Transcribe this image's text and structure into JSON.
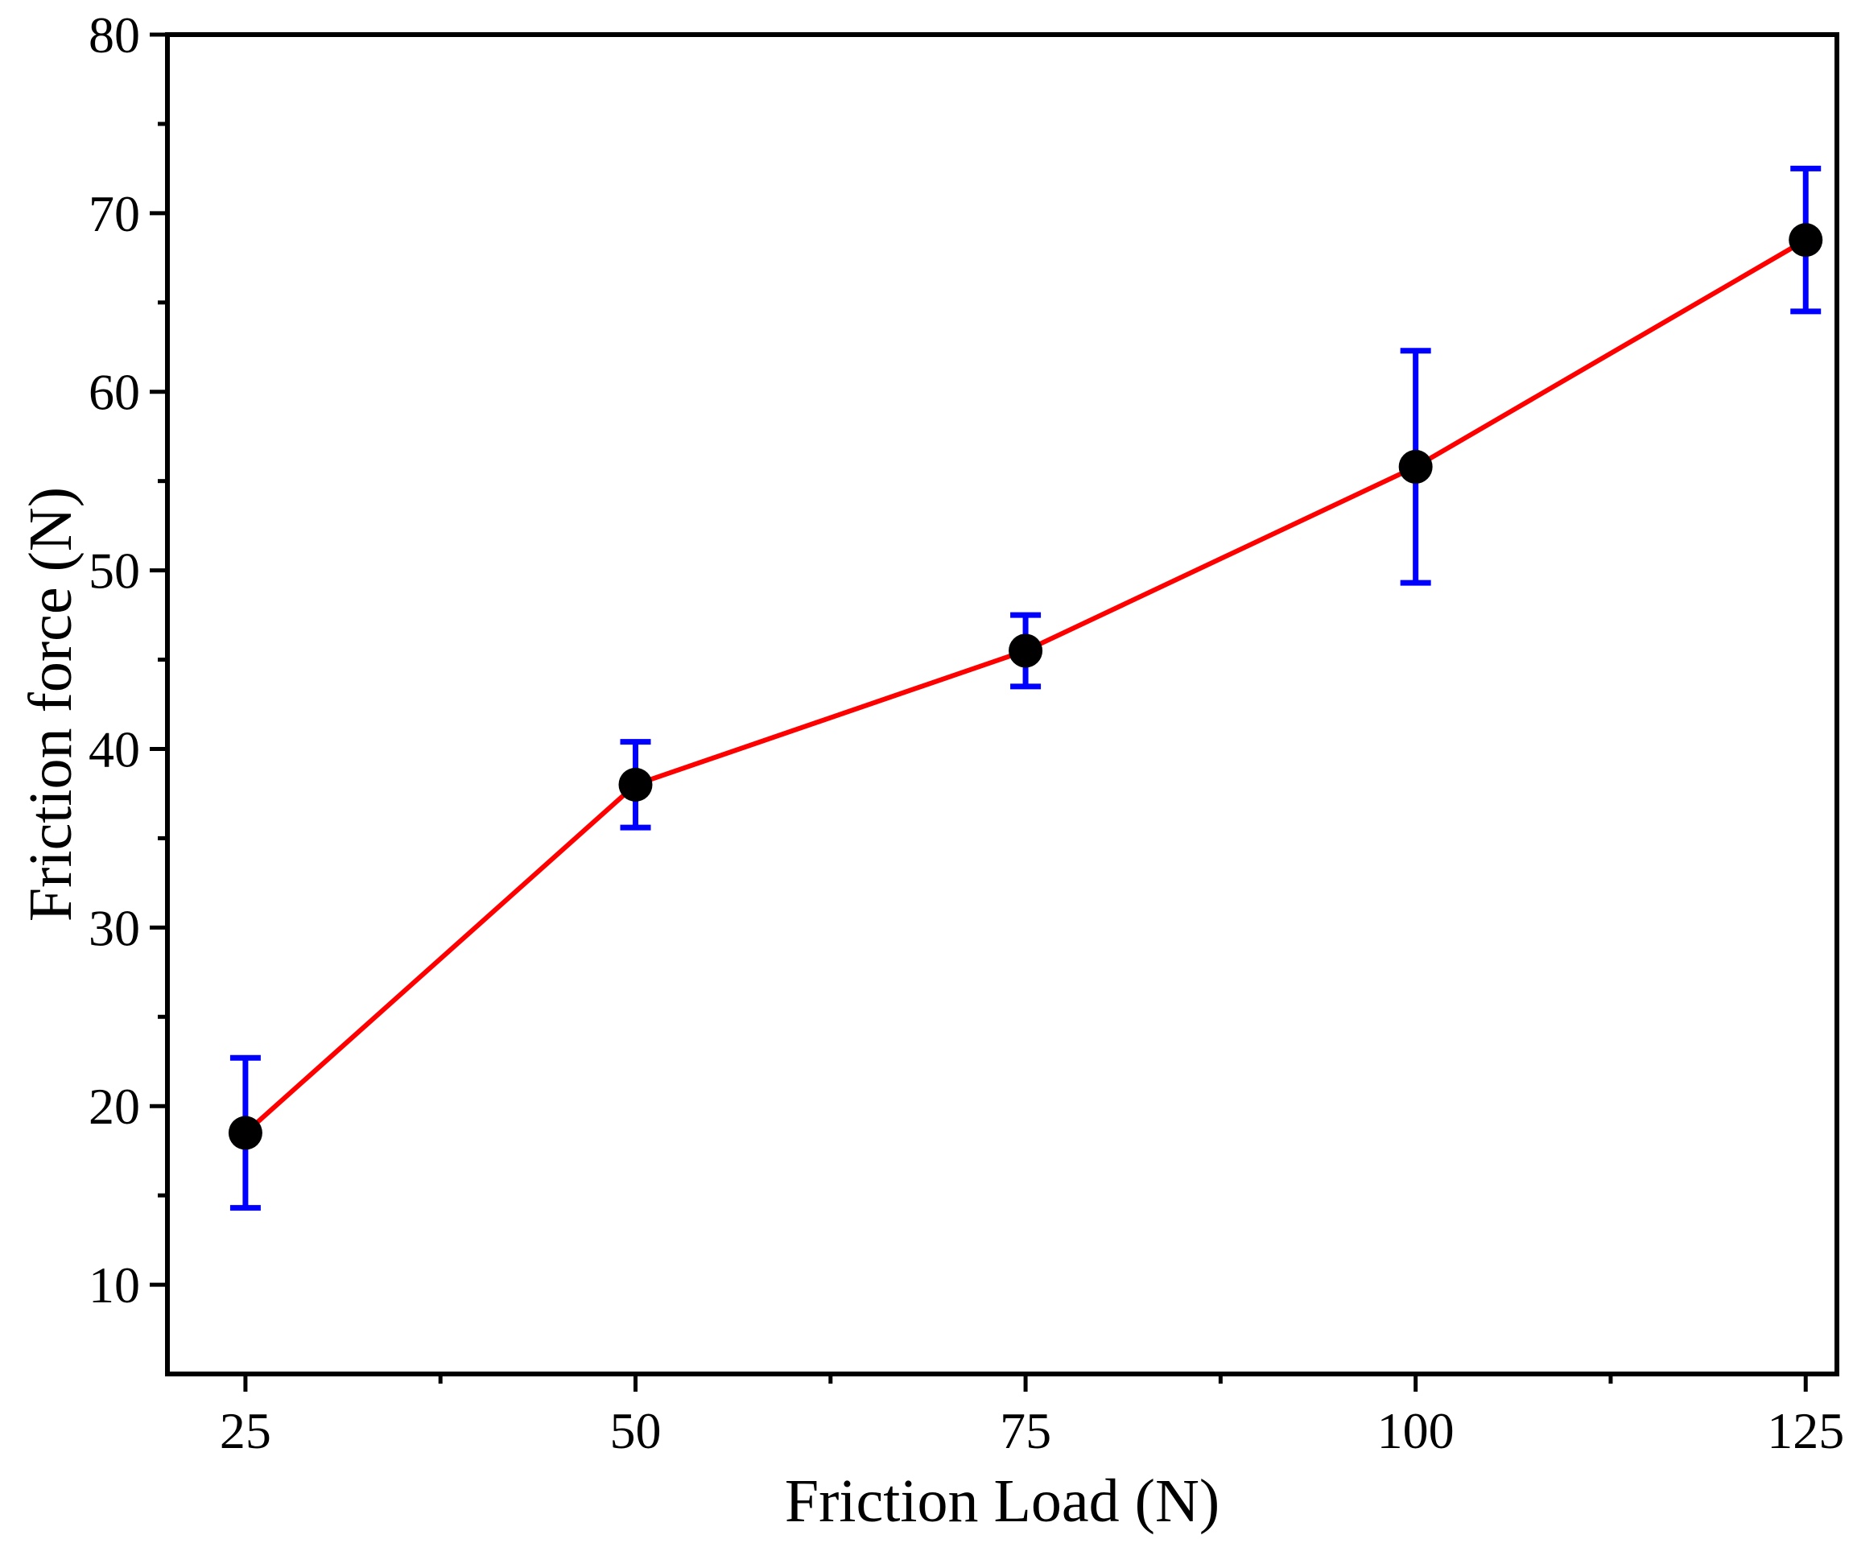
{
  "chart_data": {
    "type": "line",
    "xlabel": "Friction Load (N)",
    "ylabel": "Friction force (N)",
    "xlim": [
      20,
      127
    ],
    "ylim": [
      5,
      80
    ],
    "x_ticks": [
      25,
      50,
      75,
      100,
      125
    ],
    "y_ticks": [
      10,
      20,
      30,
      40,
      50,
      60,
      70,
      80
    ],
    "x_minor_ticks": [
      37.5,
      62.5,
      87.5,
      112.5
    ],
    "y_minor_ticks": [
      15,
      25,
      35,
      45,
      55,
      65,
      75
    ],
    "grid": false,
    "legend": "none",
    "series": [
      {
        "x": [
          25,
          50,
          75,
          100,
          125
        ],
        "y": [
          18.5,
          38.0,
          45.5,
          55.8,
          68.5
        ],
        "error": [
          4.2,
          2.4,
          2.0,
          6.5,
          4.0
        ],
        "line_color": "#ff0000",
        "marker_color": "#000000",
        "error_color": "#0000ff"
      }
    ]
  }
}
